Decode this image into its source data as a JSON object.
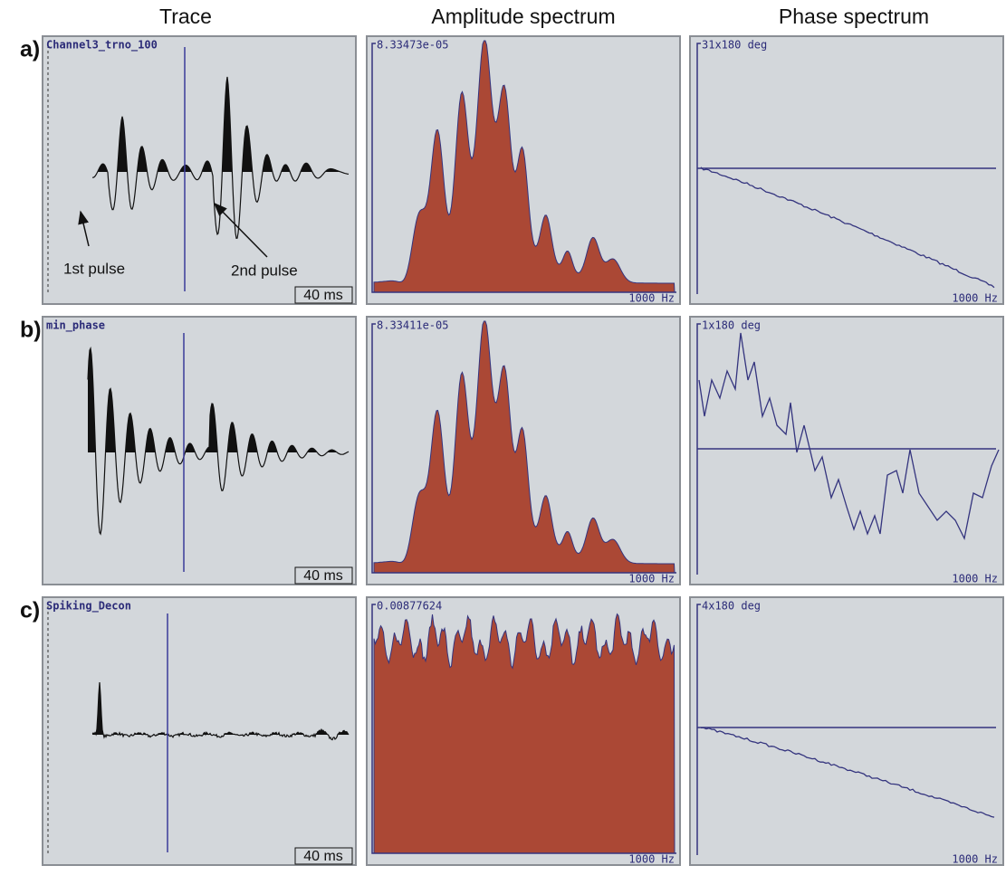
{
  "column_headers": [
    "Trace",
    "Amplitude spectrum",
    "Phase spectrum"
  ],
  "rows": [
    {
      "label": "a)",
      "trace": {
        "name": "Channel3_trno_100",
        "scale": "40 ms"
      },
      "amplitude": {
        "max": "8.33473e-05",
        "freq": "1000 Hz"
      },
      "phase": {
        "max": "31x180 deg",
        "freq": "1000 Hz"
      }
    },
    {
      "label": "b)",
      "trace": {
        "name": "min_phase",
        "scale": "40 ms"
      },
      "amplitude": {
        "max": "8.33411e-05",
        "freq": "1000 Hz"
      },
      "phase": {
        "max": "1x180 deg",
        "freq": "1000 Hz"
      }
    },
    {
      "label": "c)",
      "trace": {
        "name": "Spiking_Decon",
        "scale": "40 ms"
      },
      "amplitude": {
        "max": "0.00877624",
        "freq": "1000 Hz"
      },
      "phase": {
        "max": "4x180 deg",
        "freq": "1000 Hz"
      }
    }
  ],
  "annotations": [
    "1st pulse",
    "2nd pulse"
  ]
}
